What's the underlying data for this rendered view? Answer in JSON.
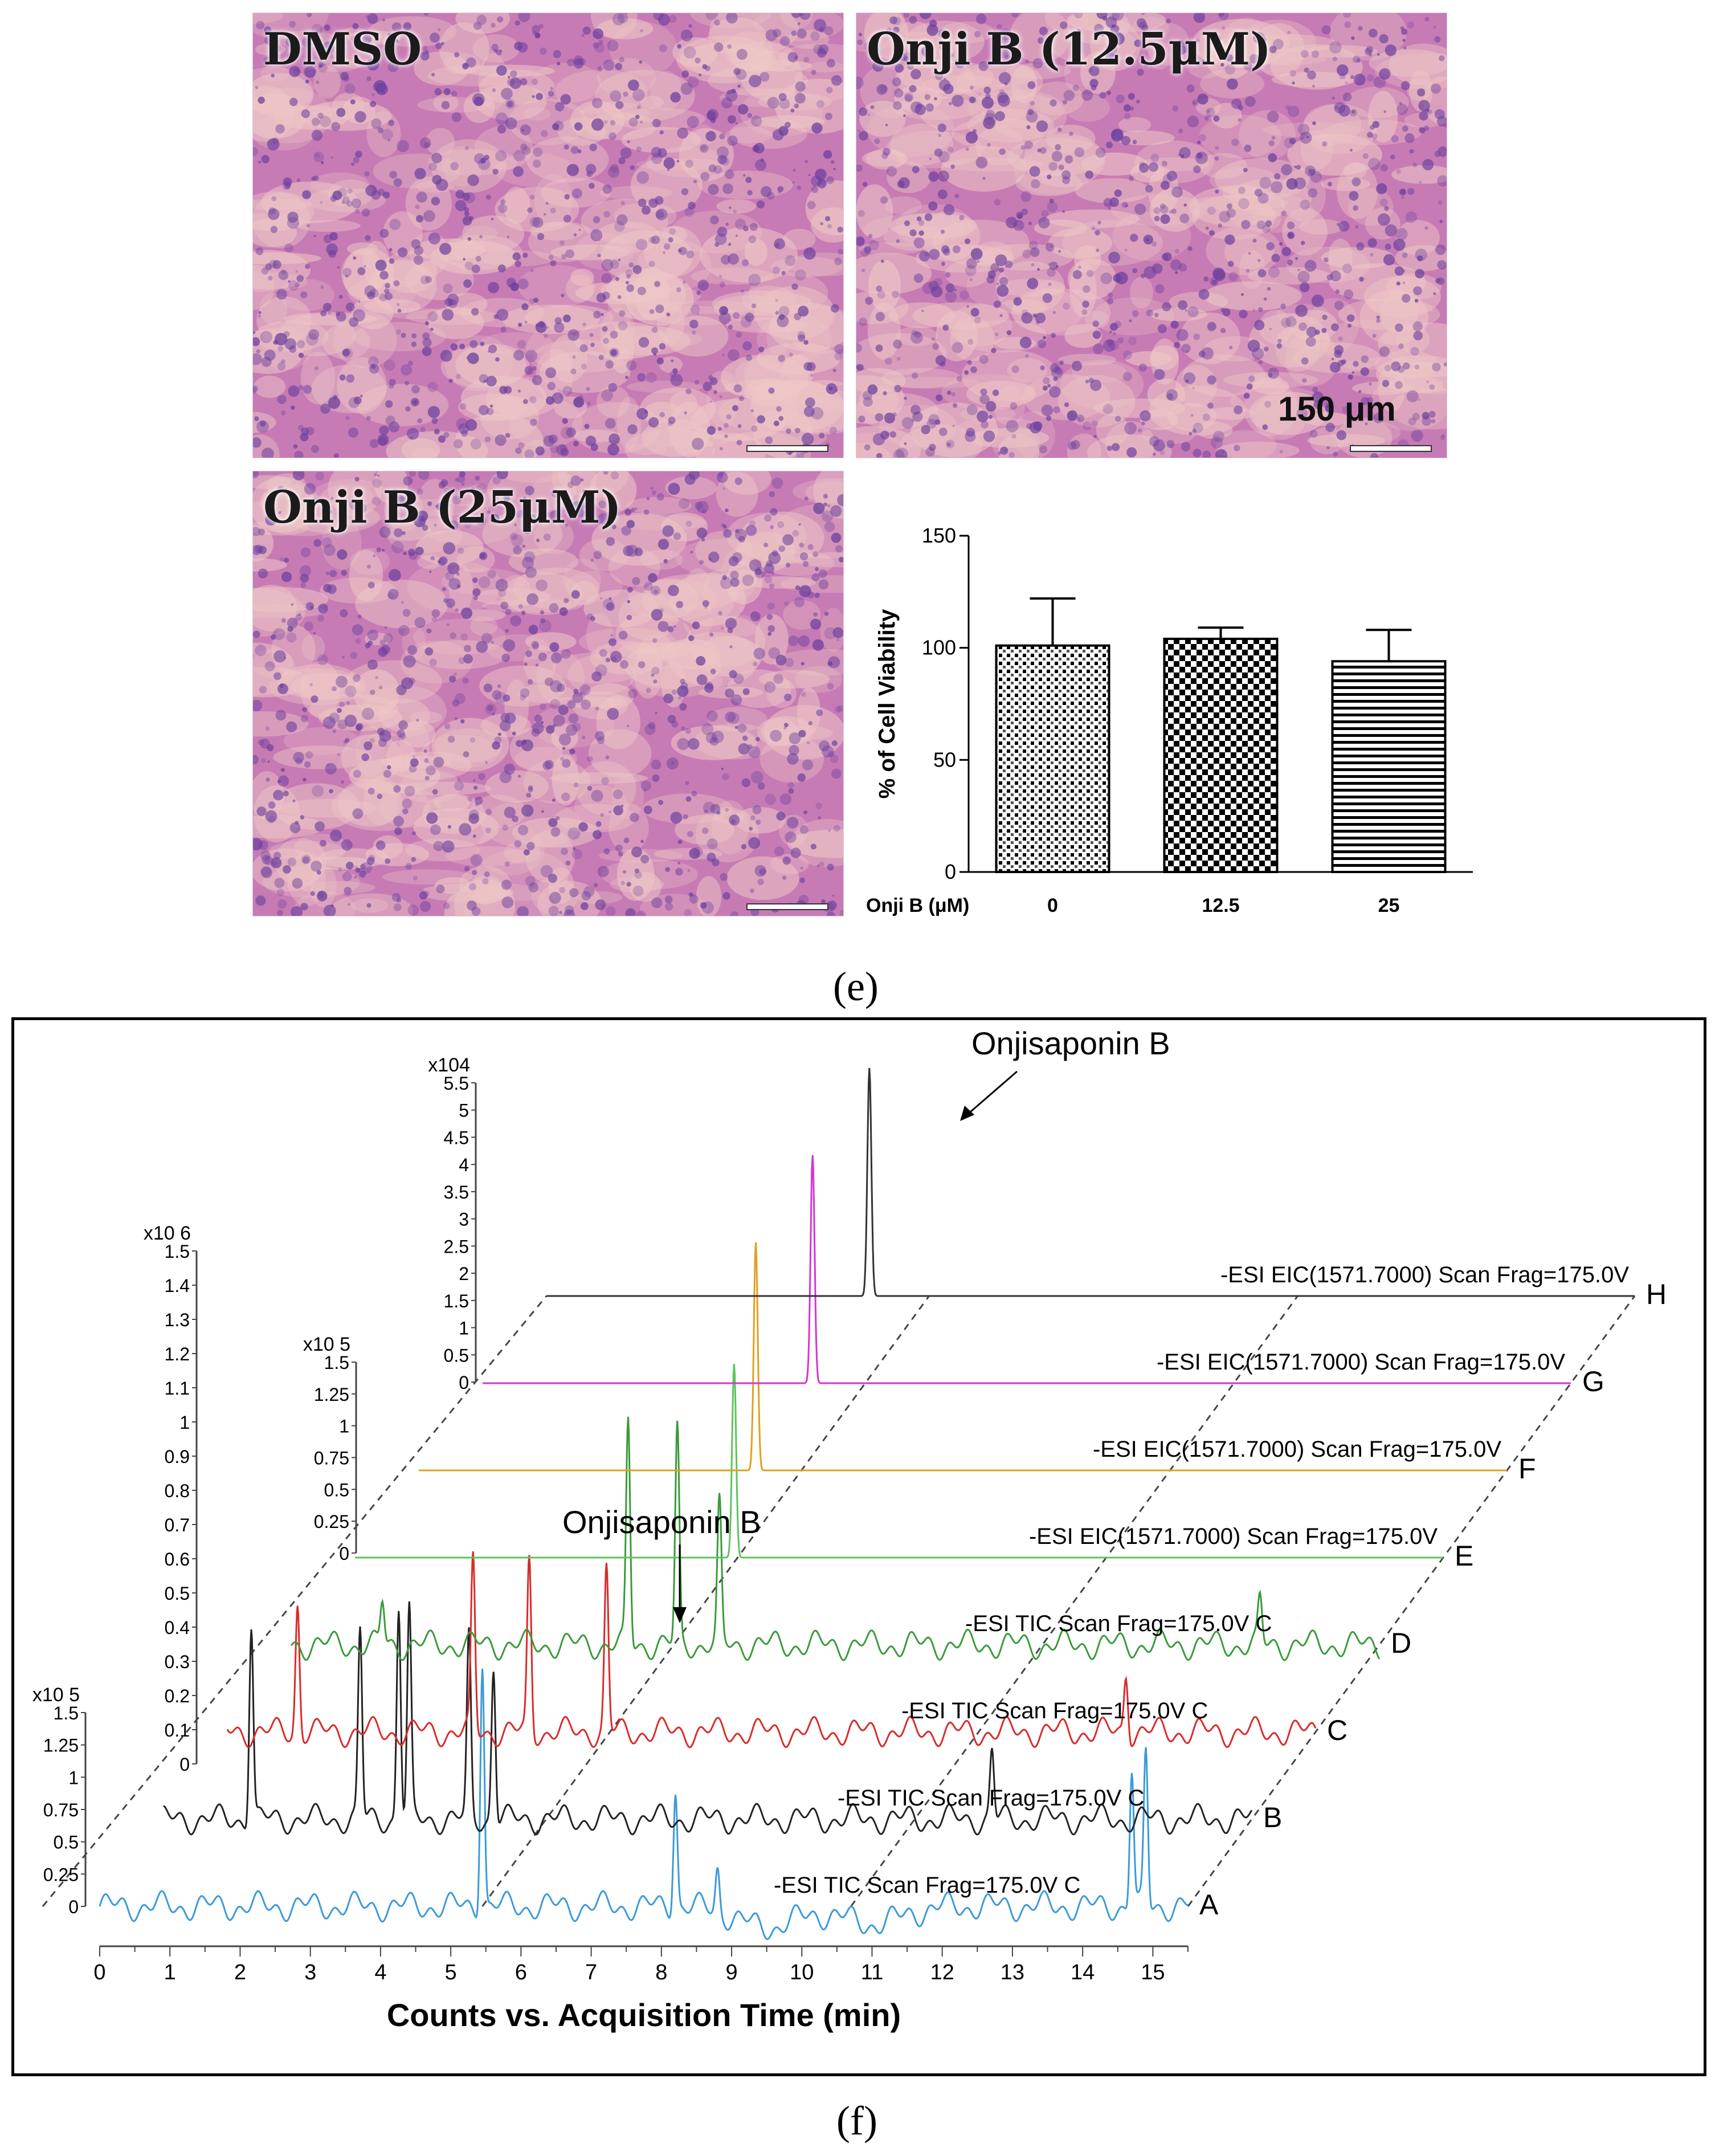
{
  "panel_e": {
    "letter": "(e)",
    "images": [
      {
        "label": "DMSO"
      },
      {
        "label": "Onji B (12.5μM)",
        "scale_label": "150 μm"
      },
      {
        "label": "Onji B (25μM)"
      }
    ],
    "colors": {
      "stain_base": "#c77bb4",
      "stain_dark": "#6b3f9e",
      "stain_light": "#eec7c6"
    }
  },
  "panel_f": {
    "letter": "(f)",
    "xlabel": "Counts vs. Acquisition Time (min)",
    "annotations": [
      "Onjisaponin B",
      "Onjisaponin B"
    ],
    "scale_left": {
      "exp": "x10 6",
      "ticks": [
        "0",
        "0.1",
        "0.2",
        "0.3",
        "0.4",
        "0.5",
        "0.6",
        "0.7",
        "0.8",
        "0.9",
        "1",
        "1.1",
        "1.2",
        "1.3",
        "1.4",
        "1.5"
      ]
    },
    "scale_mid": {
      "exp": "x10 5",
      "ticks": [
        "0",
        "0.25",
        "0.5",
        "0.75",
        "1",
        "1.25",
        "1.5"
      ]
    },
    "scale_bottom": {
      "exp": "x10 5",
      "ticks": [
        "0",
        "0.25",
        "0.5",
        "0.75",
        "1",
        "1.25",
        "1.5"
      ]
    },
    "scale_top": {
      "exp": "x104",
      "ticks": [
        "0",
        "0.5",
        "1",
        "1.5",
        "2",
        "2.5",
        "3",
        "3.5",
        "4",
        "4.5",
        "5",
        "5.5"
      ]
    },
    "traces": [
      {
        "letter": "A",
        "label": "-ESI TIC Scan Frag=175.0V C",
        "color": "#3b9ad9"
      },
      {
        "letter": "B",
        "label": "-ESI TIC Scan Frag=175.0V C",
        "color": "#222222"
      },
      {
        "letter": "C",
        "label": "-ESI TIC Scan Frag=175.0V C",
        "color": "#d92b2b"
      },
      {
        "letter": "D",
        "label": "-ESI TIC Scan Frag=175.0V C",
        "color": "#3a9a3a"
      },
      {
        "letter": "E",
        "label": "-ESI EIC(1571.7000) Scan Frag=175.0V",
        "color": "#5cc45c"
      },
      {
        "letter": "F",
        "label": "-ESI EIC(1571.7000) Scan Frag=175.0V",
        "color": "#e0a020"
      },
      {
        "letter": "G",
        "label": "-ESI EIC(1571.7000) Scan Frag=175.0V",
        "color": "#d633d6"
      },
      {
        "letter": "H",
        "label": "-ESI EIC(1571.7000) Scan Frag=175.0V",
        "color": "#333333"
      }
    ]
  },
  "chart_data": [
    {
      "type": "bar",
      "categories": [
        "0",
        "12.5",
        "25"
      ],
      "values": [
        101,
        104,
        94
      ],
      "errors": [
        21,
        5,
        14
      ],
      "patterns": [
        "dots",
        "checker",
        "hlines"
      ],
      "xlabel": "Onji B (μM)",
      "ylabel": "% of Cell Viability",
      "ylim": [
        0,
        150
      ],
      "yticks": [
        "0",
        "50",
        "100",
        "150"
      ],
      "grid": false
    },
    {
      "type": "line",
      "xlabel": "Counts vs. Acquisition Time (min)",
      "xlim": [
        0,
        15.5
      ],
      "xticks": [
        "0",
        "1",
        "2",
        "3",
        "4",
        "5",
        "6",
        "7",
        "8",
        "9",
        "10",
        "11",
        "12",
        "13",
        "14",
        "15"
      ],
      "series": [
        {
          "name": "A",
          "peaks": [
            [
              5.45,
              1.45
            ],
            [
              8.2,
              0.7
            ],
            [
              8.8,
              0.25
            ],
            [
              14.7,
              0.8
            ],
            [
              14.9,
              0.9
            ]
          ]
        },
        {
          "name": "B",
          "peaks": [
            [
              1.25,
              1.15
            ],
            [
              2.8,
              1.1
            ],
            [
              3.35,
              1.25
            ],
            [
              3.5,
              1.2
            ],
            [
              4.35,
              1.05
            ],
            [
              4.7,
              0.9
            ],
            [
              11.8,
              0.4
            ]
          ]
        },
        {
          "name": "C",
          "peaks": [
            [
              1.0,
              0.75
            ],
            [
              3.5,
              1.0
            ],
            [
              4.3,
              1.0
            ],
            [
              5.4,
              0.95
            ],
            [
              12.8,
              0.35
            ]
          ]
        },
        {
          "name": "D",
          "peaks": [
            [
              1.3,
              0.25
            ],
            [
              4.8,
              1.3
            ],
            [
              5.5,
              1.25
            ],
            [
              6.1,
              0.8
            ],
            [
              13.8,
              0.25
            ]
          ]
        },
        {
          "name": "E",
          "peaks": [
            [
              5.4,
              0.85
            ]
          ]
        },
        {
          "name": "F",
          "peaks": [
            [
              4.8,
              1.0
            ]
          ]
        },
        {
          "name": "G",
          "peaks": [
            [
              4.7,
              1.0
            ]
          ]
        },
        {
          "name": "H",
          "peaks": [
            [
              4.6,
              1.0
            ]
          ]
        }
      ]
    }
  ]
}
